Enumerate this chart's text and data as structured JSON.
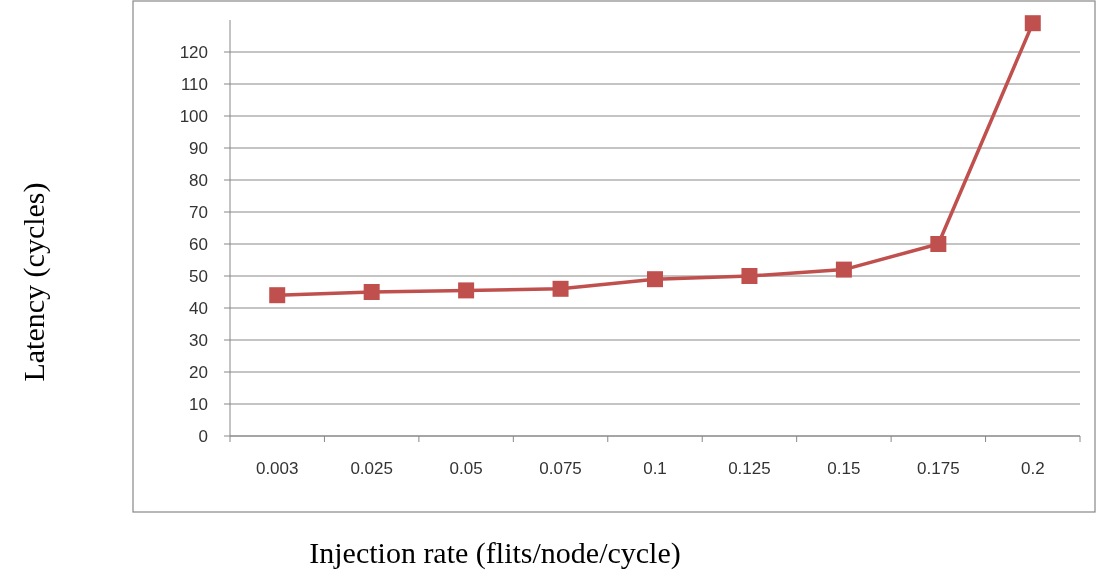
{
  "chart_data": {
    "type": "line",
    "xlabel": "Injection rate (flits/node/cycle)",
    "ylabel": "Latency (cycles)",
    "categories": [
      "0.003",
      "0.025",
      "0.05",
      "0.075",
      "0.1",
      "0.125",
      "0.15",
      "0.175",
      "0.2"
    ],
    "series": [
      {
        "color": "#c0504d",
        "values": [
          44,
          45,
          45.5,
          46,
          49,
          50,
          52,
          60,
          129
        ]
      }
    ],
    "ylim": [
      0,
      130
    ],
    "yticks": [
      0,
      10,
      20,
      30,
      40,
      50,
      60,
      70,
      80,
      90,
      100,
      110,
      120
    ],
    "grid": "y",
    "marker": "square",
    "line_style": "solid"
  }
}
